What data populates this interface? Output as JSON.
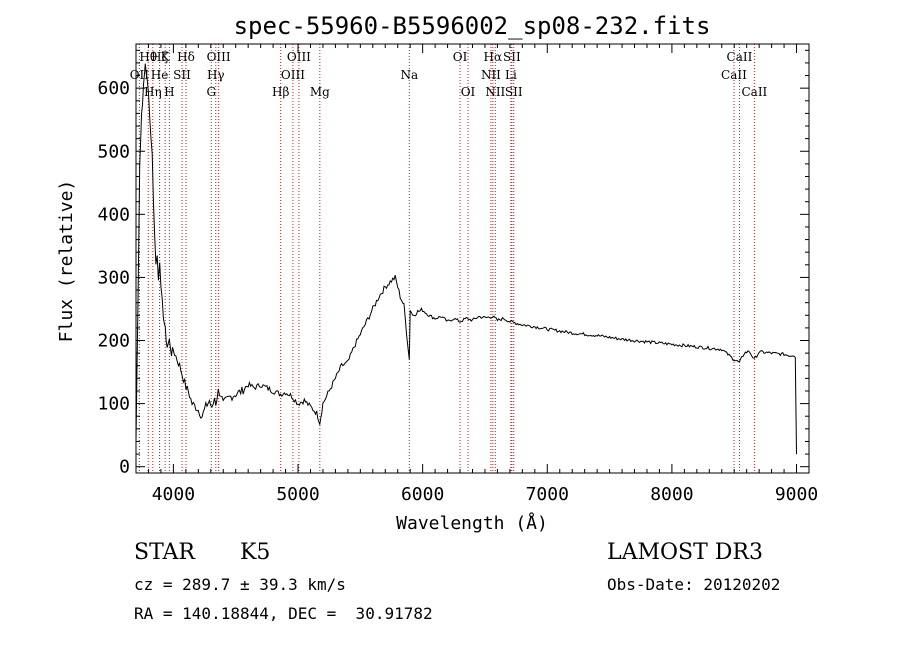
{
  "chart_data": {
    "type": "line",
    "title": "spec-55960-B5596002_sp08-232.fits",
    "xlabel": "Wavelength (Å)",
    "ylabel": "Flux (relative)",
    "xlim": [
      3700,
      9100
    ],
    "ylim": [
      -10,
      670
    ],
    "xticks": [
      4000,
      5000,
      6000,
      7000,
      8000,
      9000
    ],
    "yticks": [
      0,
      100,
      200,
      300,
      400,
      500,
      600
    ],
    "grid": false,
    "series": [
      {
        "color": "#000000",
        "x": [
          3700,
          3715,
          3730,
          3745,
          3760,
          3775,
          3790,
          3800,
          3810,
          3820,
          3830,
          3840,
          3850,
          3860,
          3870,
          3880,
          3890,
          3900,
          3910,
          3920,
          3935,
          3950,
          3968,
          3985,
          4000,
          4020,
          4050,
          4080,
          4101,
          4120,
          4150,
          4180,
          4200,
          4230,
          4260,
          4290,
          4310,
          4330,
          4340,
          4360,
          4380,
          4400,
          4450,
          4500,
          4550,
          4600,
          4650,
          4700,
          4750,
          4800,
          4861,
          4900,
          4950,
          5000,
          5050,
          5100,
          5150,
          5175,
          5200,
          5250,
          5300,
          5350,
          5400,
          5450,
          5500,
          5550,
          5600,
          5650,
          5700,
          5750,
          5780,
          5800,
          5820,
          5850,
          5893,
          5900,
          5920,
          5950,
          6000,
          6050,
          6100,
          6150,
          6200,
          6250,
          6300,
          6350,
          6400,
          6450,
          6500,
          6563,
          6600,
          6650,
          6700,
          6800,
          6900,
          7000,
          7100,
          7200,
          7300,
          7400,
          7500,
          7600,
          7700,
          7800,
          7900,
          8000,
          8100,
          8200,
          8300,
          8400,
          8498,
          8542,
          8580,
          8620,
          8662,
          8700,
          8800,
          8900,
          8950,
          8980,
          8990,
          9000
        ],
        "y": [
          40,
          250,
          480,
          560,
          600,
          640,
          610,
          590,
          560,
          520,
          500,
          420,
          370,
          320,
          335,
          300,
          330,
          280,
          260,
          240,
          215,
          190,
          200,
          180,
          185,
          175,
          160,
          140,
          125,
          120,
          100,
          95,
          90,
          80,
          95,
          105,
          90,
          110,
          100,
          120,
          115,
          100,
          110,
          115,
          120,
          130,
          125,
          130,
          125,
          120,
          115,
          118,
          112,
          100,
          105,
          95,
          85,
          70,
          100,
          120,
          140,
          160,
          165,
          190,
          210,
          230,
          250,
          270,
          285,
          295,
          300,
          285,
          270,
          255,
          170,
          250,
          240,
          245,
          248,
          240,
          235,
          238,
          230,
          235,
          230,
          235,
          232,
          238,
          236,
          238,
          232,
          235,
          230,
          225,
          222,
          218,
          215,
          212,
          210,
          208,
          205,
          202,
          200,
          198,
          196,
          194,
          192,
          190,
          188,
          186,
          170,
          165,
          180,
          183,
          170,
          182,
          180,
          178,
          176,
          177,
          175,
          20
        ]
      }
    ],
    "lines": [
      {
        "name": "Hθ",
        "x": 3798,
        "row": 0
      },
      {
        "name": "OII",
        "x": 3727,
        "row": 1
      },
      {
        "name": "Hη",
        "x": 3835,
        "row": 2
      },
      {
        "name": "Hζ",
        "x": 3889,
        "row": 0
      },
      {
        "name": "He",
        "x": 3889,
        "row": 1
      },
      {
        "name": "K",
        "x": 3934,
        "row": 0
      },
      {
        "name": "SII",
        "x": 4069,
        "row": 1
      },
      {
        "name": "H",
        "x": 3968,
        "row": 2
      },
      {
        "name": "Hδ",
        "x": 4101,
        "row": 0
      },
      {
        "name": "OIII",
        "x": 4363,
        "row": 0
      },
      {
        "name": "Hγ",
        "x": 4340,
        "row": 1
      },
      {
        "name": "G",
        "x": 4304,
        "row": 2
      },
      {
        "name": "OIII",
        "x": 5007,
        "row": 0
      },
      {
        "name": "OIII",
        "x": 4959,
        "row": 1
      },
      {
        "name": "Hβ",
        "x": 4861,
        "row": 2
      },
      {
        "name": "Mg",
        "x": 5175,
        "row": 2
      },
      {
        "name": "Na",
        "x": 5893,
        "row": 1
      },
      {
        "name": "OI",
        "x": 6300,
        "row": 0
      },
      {
        "name": "OI",
        "x": 6364,
        "row": 2
      },
      {
        "name": "Hα",
        "x": 6563,
        "row": 0
      },
      {
        "name": "SII",
        "x": 6716,
        "row": 0
      },
      {
        "name": "NII",
        "x": 6548,
        "row": 1
      },
      {
        "name": "Li",
        "x": 6708,
        "row": 1
      },
      {
        "name": "NII",
        "x": 6583,
        "row": 2
      },
      {
        "name": "SII",
        "x": 6731,
        "row": 2
      },
      {
        "name": "CaII",
        "x": 8542,
        "row": 0
      },
      {
        "name": "CaII",
        "x": 8498,
        "row": 1
      },
      {
        "name": "CaII",
        "x": 8662,
        "row": 2
      }
    ]
  },
  "info": {
    "object_class": "STAR",
    "subclass": "K5",
    "survey": "LAMOST DR3",
    "cz": "cz = 289.7 ± 39.3 km/s",
    "obs_date": "Obs-Date: 20120202",
    "coords": "RA = 140.18844, DEC =  30.91782"
  }
}
